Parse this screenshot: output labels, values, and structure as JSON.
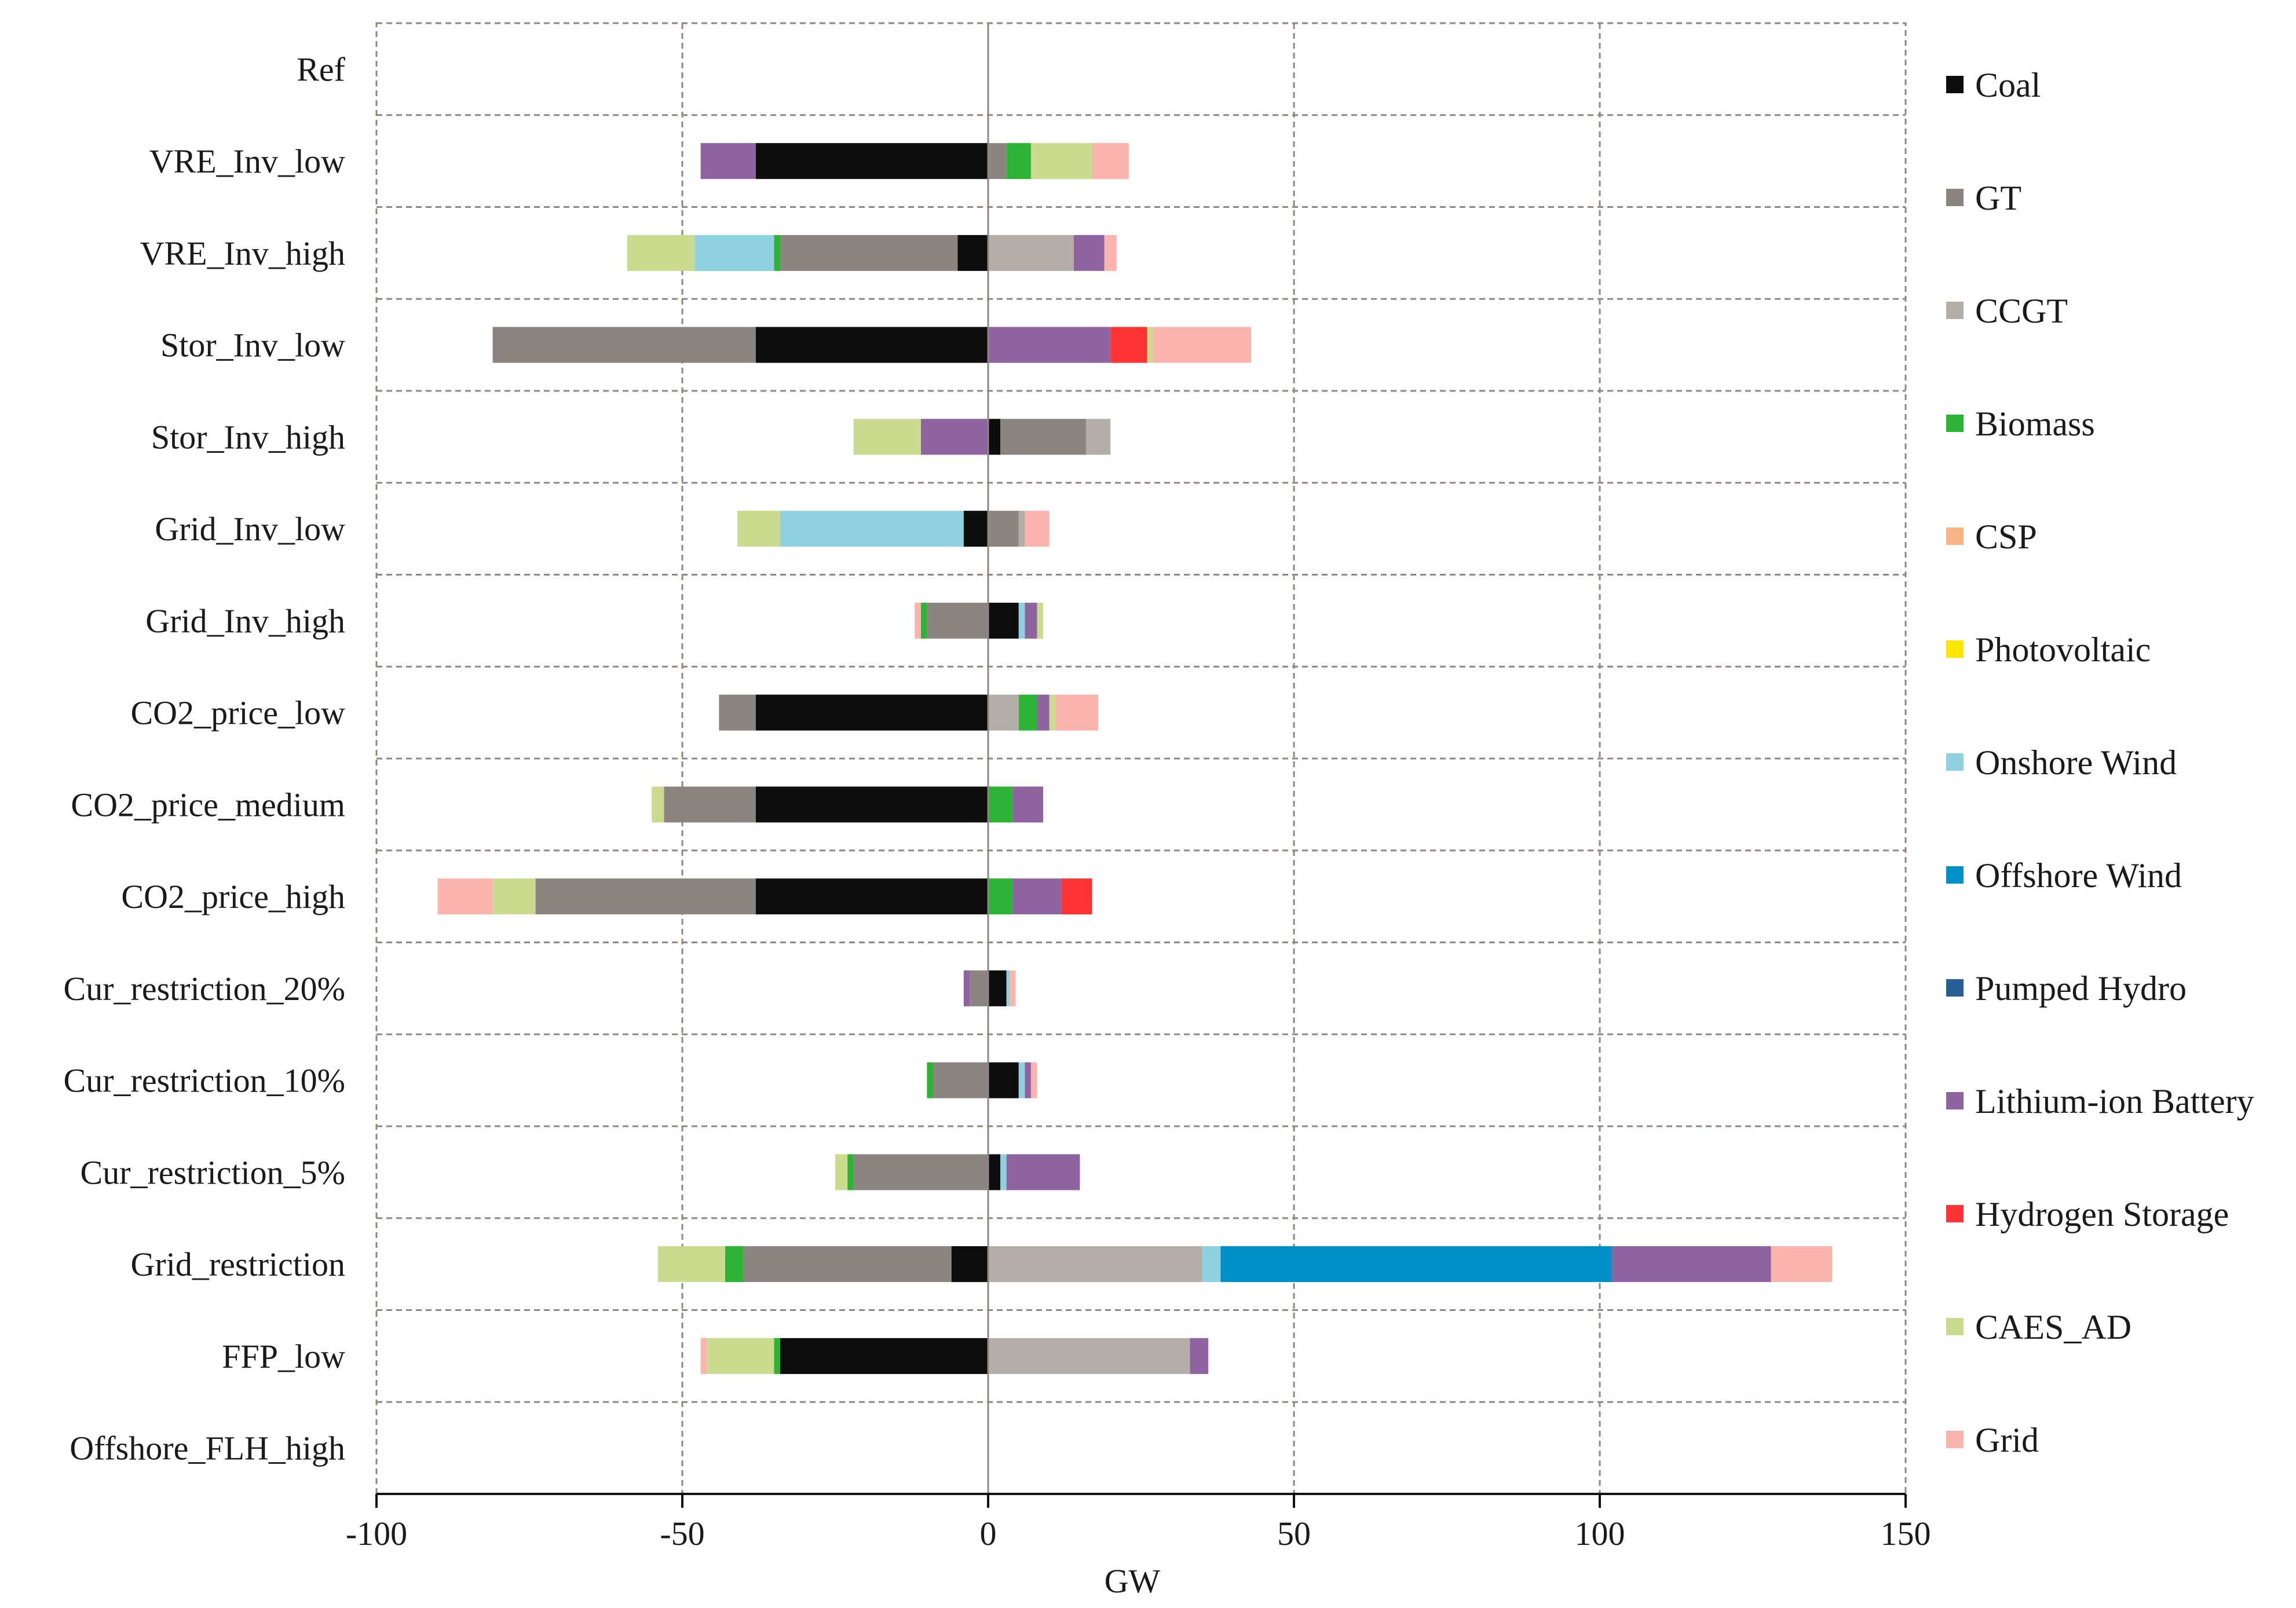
{
  "chart_data": {
    "type": "bar",
    "orientation": "horizontal",
    "stacked": "diverging",
    "title": "",
    "xlabel": "GW",
    "ylabel": "",
    "xlim": [
      -100,
      150
    ],
    "xticks": [
      -100,
      -50,
      0,
      50,
      100,
      150
    ],
    "grid": true,
    "legend_position": "right",
    "categories": [
      "Ref",
      "VRE_Inv_low",
      "VRE_Inv_high",
      "Stor_Inv_low",
      "Stor_Inv_high",
      "Grid_Inv_low",
      "Grid_Inv_high",
      "CO2_price_low",
      "CO2_price_medium",
      "CO2_price_high",
      "Cur_restriction_20%",
      "Cur_restriction_10%",
      "Cur_restriction_5%",
      "Grid_restriction",
      "FFP_low",
      "Offshore_FLH_high"
    ],
    "series": [
      {
        "name": "Coal",
        "color": "#0d0d0d",
        "values": [
          0,
          -38,
          -5,
          -38,
          2,
          -4,
          5,
          -38,
          -38,
          -38,
          3,
          5,
          2,
          -6,
          -34,
          0
        ]
      },
      {
        "name": "GT",
        "color": "#8c8480",
        "values": [
          0,
          3,
          -29,
          -43,
          14,
          5,
          -10,
          -6,
          -15,
          -36,
          -3,
          -9,
          -22,
          -34,
          0,
          0
        ]
      },
      {
        "name": "CCGT",
        "color": "#b3aea8",
        "values": [
          0,
          0,
          14,
          0,
          4,
          1,
          0,
          5,
          0,
          0,
          0,
          0,
          0,
          35,
          33,
          0
        ]
      },
      {
        "name": "Biomass",
        "color": "#2db336",
        "values": [
          0,
          4,
          -1,
          0,
          0,
          0,
          -1,
          3,
          4,
          4,
          0,
          -1,
          -1,
          -3,
          -1,
          0
        ]
      },
      {
        "name": "CSP",
        "color": "#f9b486",
        "values": [
          0,
          0,
          0,
          0,
          0,
          0,
          0,
          0,
          0,
          0,
          0,
          0,
          0,
          0,
          0,
          0
        ]
      },
      {
        "name": "Photovoltaic",
        "color": "#ffe600",
        "values": [
          0,
          0,
          0,
          0,
          0,
          0,
          0,
          0,
          0,
          0,
          0,
          0,
          0,
          0,
          0,
          0
        ]
      },
      {
        "name": "Onshore Wind",
        "color": "#8fd1e0",
        "values": [
          0,
          0,
          -13,
          0,
          0,
          -30,
          1,
          0,
          0,
          0,
          0.5,
          1,
          1,
          3,
          0,
          0
        ]
      },
      {
        "name": "Offshore Wind",
        "color": "#008fc6",
        "values": [
          0,
          0,
          0,
          0,
          0,
          0,
          0,
          0,
          0,
          0,
          0,
          0,
          0,
          64,
          0,
          0
        ]
      },
      {
        "name": "Pumped Hydro",
        "color": "#255f95",
        "values": [
          0,
          0,
          0,
          0,
          0,
          0,
          0,
          0,
          0,
          0,
          0,
          0,
          0,
          0,
          0,
          0
        ]
      },
      {
        "name": "Lithium-ion Battery",
        "color": "#8f63a0",
        "values": [
          0,
          -9,
          5,
          20,
          -11,
          0,
          2,
          2,
          5,
          8,
          -1,
          1,
          12,
          26,
          3,
          0
        ]
      },
      {
        "name": "Hydrogen Storage",
        "color": "#ff3333",
        "values": [
          0,
          0,
          0,
          6,
          0,
          0,
          0,
          0,
          0,
          5,
          0,
          0,
          0,
          0,
          0,
          0
        ]
      },
      {
        "name": "CAES_AD",
        "color": "#cadb8f",
        "values": [
          0,
          10,
          -11,
          1,
          -11,
          -7,
          1,
          1,
          -2,
          -7,
          0,
          0,
          -2,
          -11,
          -11,
          0
        ]
      },
      {
        "name": "Grid",
        "color": "#fbb4ad",
        "values": [
          0,
          6,
          2,
          16,
          0,
          4,
          -1,
          7,
          0,
          -9,
          1,
          1,
          0,
          10,
          -1,
          0
        ]
      }
    ]
  }
}
